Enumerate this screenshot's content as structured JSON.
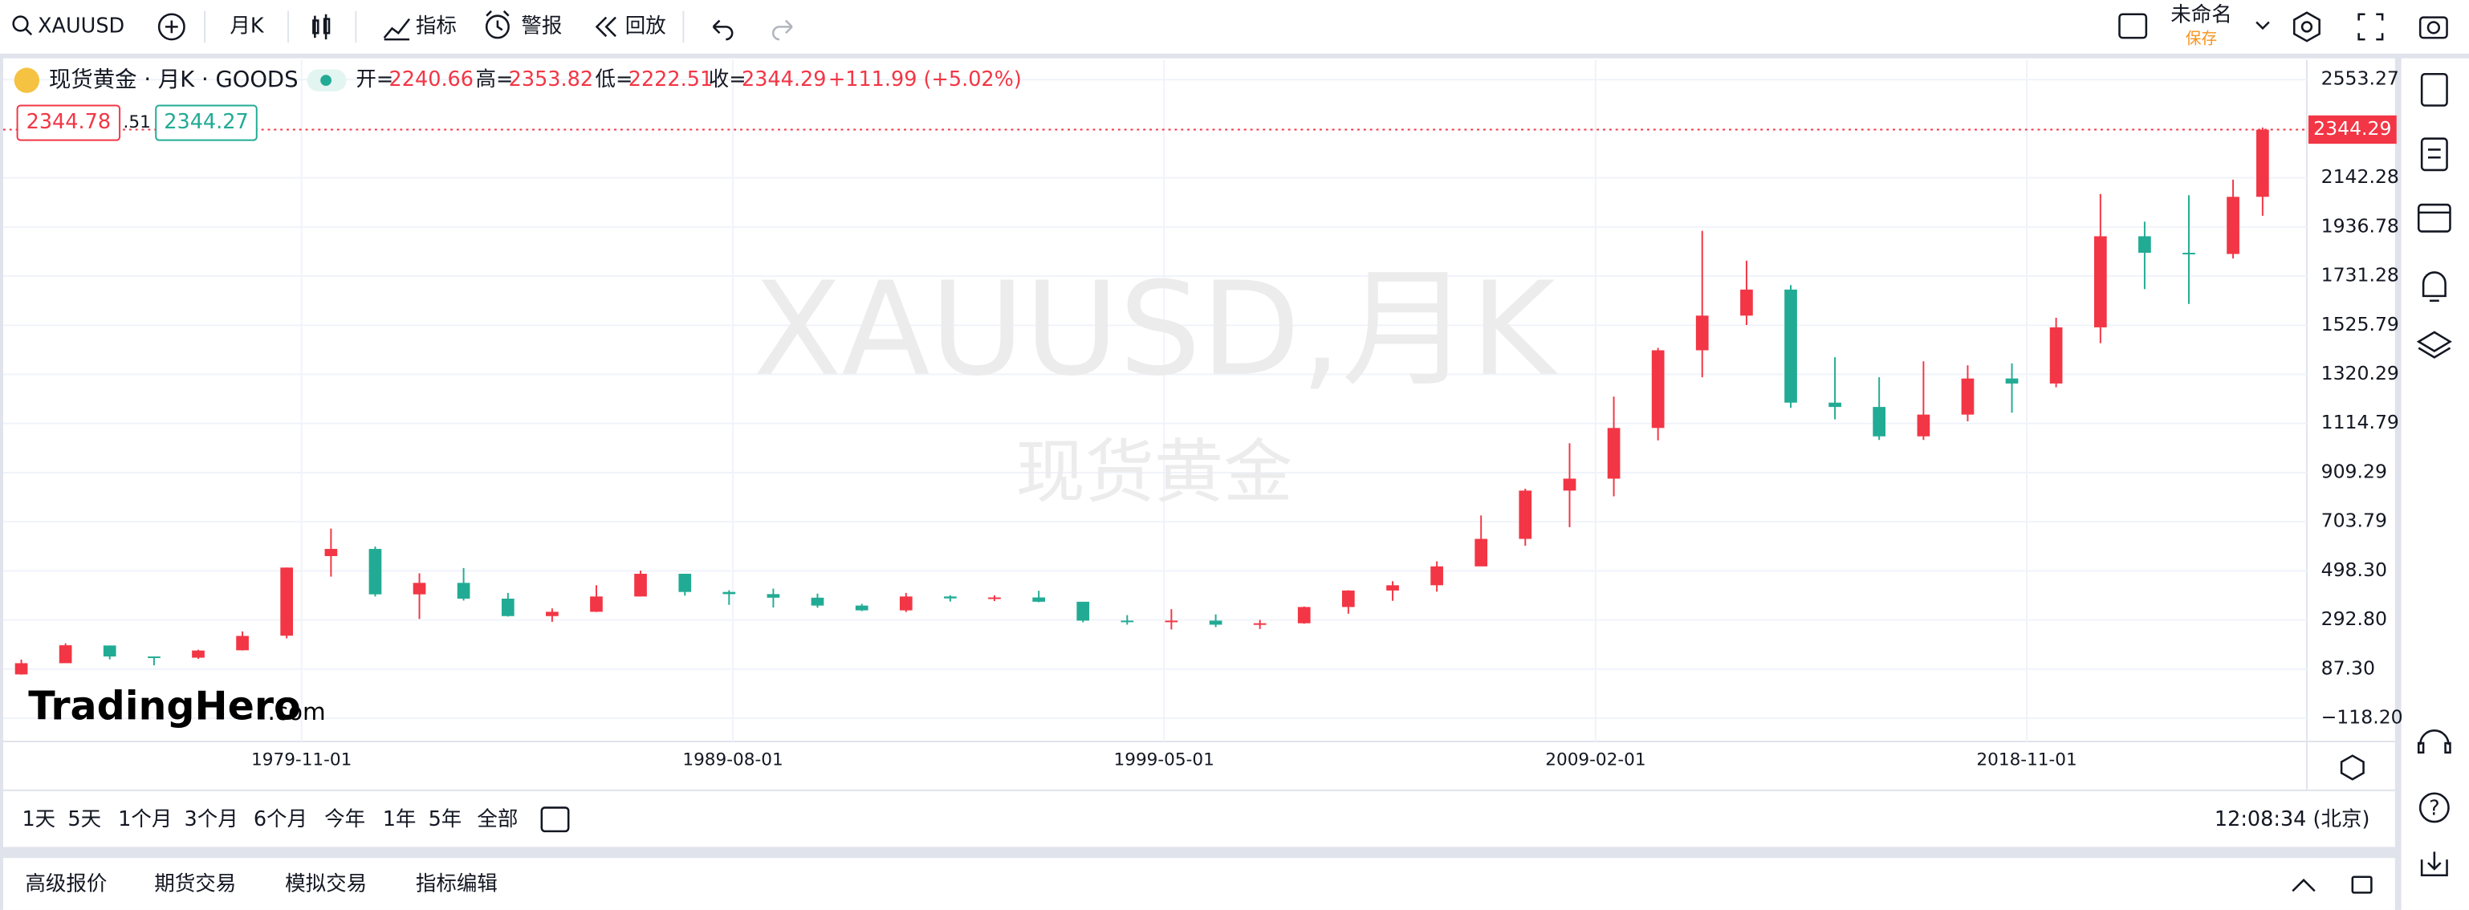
{
  "toolbar": {
    "symbol": "XAUUSD",
    "interval": "月K",
    "indicators": "指标",
    "alerts": "警报",
    "replay": "回放",
    "layout_name": "未命名",
    "save": "保存"
  },
  "legend": {
    "name": "现货黄金 · 月K · GOODS",
    "open_label": "开=",
    "open": 2240.66,
    "high_label": "高=",
    "high": 2353.82,
    "low_label": "低=",
    "low": 2222.51,
    "close_label": "收=",
    "close": 2344.29,
    "change": "+111.99 (+5.02%)"
  },
  "quote": {
    "sell": 2344.78,
    "spread": ".51",
    "buy": 2344.27
  },
  "watermark": {
    "title": "XAUUSD,月K",
    "subtitle": "现货黄金"
  },
  "logo": {
    "name": "TradingHero",
    "suffix": ".com"
  },
  "chart_data": {
    "type": "candlestick",
    "x": [
      "1973-07-01",
      "1974-07-01",
      "1975-07-01",
      "1976-07-01",
      "1977-07-01",
      "1978-07-01",
      "1979-07-01",
      "1980-07-01",
      "1981-07-01",
      "1982-07-01",
      "1983-07-01",
      "1984-07-01",
      "1985-07-01",
      "1986-07-01",
      "1987-07-01",
      "1988-07-01",
      "1989-07-01",
      "1990-07-01",
      "1991-07-01",
      "1992-07-01",
      "1993-07-01",
      "1994-07-01",
      "1995-07-01",
      "1996-07-01",
      "1997-07-01",
      "1998-07-01",
      "1999-07-01",
      "2000-07-01",
      "2001-07-01",
      "2002-07-01",
      "2003-07-01",
      "2004-07-01",
      "2005-07-01",
      "2006-07-01",
      "2007-07-01",
      "2008-07-01",
      "2009-07-01",
      "2010-07-01",
      "2011-07-01",
      "2012-07-01",
      "2013-07-01",
      "2014-07-01",
      "2015-07-01",
      "2016-07-01",
      "2017-07-01",
      "2018-07-01",
      "2019-07-01",
      "2020-07-01",
      "2021-07-01",
      "2022-07-01",
      "2023-07-01",
      "2024-03-01"
    ],
    "open": [
      65,
      112,
      186,
      140,
      135,
      166,
      227,
      560,
      590,
      400,
      448,
      382,
      309,
      327,
      391,
      486,
      410,
      401,
      386,
      353,
      333,
      391,
      383,
      387,
      369,
      290,
      288,
      290,
      273,
      279,
      347,
      416,
      438,
      517,
      632,
      834,
      884,
      1096,
      1421,
      1566,
      1675,
      1202,
      1184,
      1061,
      1152,
      1303,
      1282,
      1517,
      1898,
      1829,
      1824,
      2063
    ],
    "high": [
      127,
      195,
      186,
      140,
      168,
      245,
      512,
      675,
      600,
      488,
      510,
      406,
      341,
      438,
      499,
      483,
      417,
      424,
      403,
      360,
      406,
      396,
      396,
      415,
      367,
      313,
      338,
      316,
      293,
      349,
      417,
      455,
      538,
      730,
      842,
      1032,
      1227,
      1431,
      1921,
      1796,
      1694,
      1392,
      1308,
      1375,
      1358,
      1366,
      1557,
      2075,
      1959,
      2070,
      2135,
      2353
    ],
    "low": [
      64,
      115,
      128,
      103,
      130,
      165,
      216,
      474,
      391,
      297,
      374,
      307,
      285,
      326,
      391,
      395,
      356,
      345,
      344,
      330,
      326,
      370,
      372,
      367,
      283,
      273,
      253,
      263,
      255,
      277,
      319,
      373,
      411,
      524,
      603,
      681,
      810,
      1044,
      1308,
      1527,
      1180,
      1132,
      1046,
      1046,
      1124,
      1160,
      1266,
      1451,
      1677,
      1615,
      1805,
      1984
    ],
    "close": [
      112,
      187,
      140,
      134,
      165,
      226,
      512,
      590,
      400,
      448,
      382,
      309,
      327,
      391,
      486,
      410,
      401,
      386,
      353,
      333,
      391,
      383,
      387,
      369,
      290,
      288,
      290,
      273,
      279,
      347,
      416,
      438,
      517,
      632,
      834,
      884,
      1096,
      1421,
      1566,
      1675,
      1202,
      1184,
      1061,
      1152,
      1303,
      1282,
      1517,
      1898,
      1829,
      1824,
      2063,
      2344
    ],
    "up_color": "#f23645",
    "down_color": "#22ab94",
    "xlim": [
      "1973-02-01",
      "2025-03-01"
    ],
    "xticks": [
      "1979-11-01",
      "1989-08-01",
      "1999-05-01",
      "2009-02-01",
      "2018-11-01"
    ],
    "ylim": [
      -215.7,
      2636
    ],
    "yticks": [
      2553.27,
      2142.28,
      1936.78,
      1731.28,
      1525.79,
      1320.29,
      1114.79,
      909.29,
      703.79,
      {
        "value": 498.3,
        "label": "498.30"
      },
      {
        "value": 292.8,
        "label": "292.80"
      },
      {
        "value": 87.3,
        "label": "87.30"
      },
      {
        "value": -118.2,
        "label": "−118.20"
      }
    ],
    "grid": true,
    "last_price": 2344.29
  },
  "ranges": [
    "1天",
    "5天",
    "1个月",
    "3个月",
    "6个月",
    "今年",
    "1年",
    "5年",
    "全部"
  ],
  "clock": "12:08:34 (北京)",
  "tabs": [
    "高级报价",
    "期货交易",
    "模拟交易",
    "指标编辑"
  ]
}
